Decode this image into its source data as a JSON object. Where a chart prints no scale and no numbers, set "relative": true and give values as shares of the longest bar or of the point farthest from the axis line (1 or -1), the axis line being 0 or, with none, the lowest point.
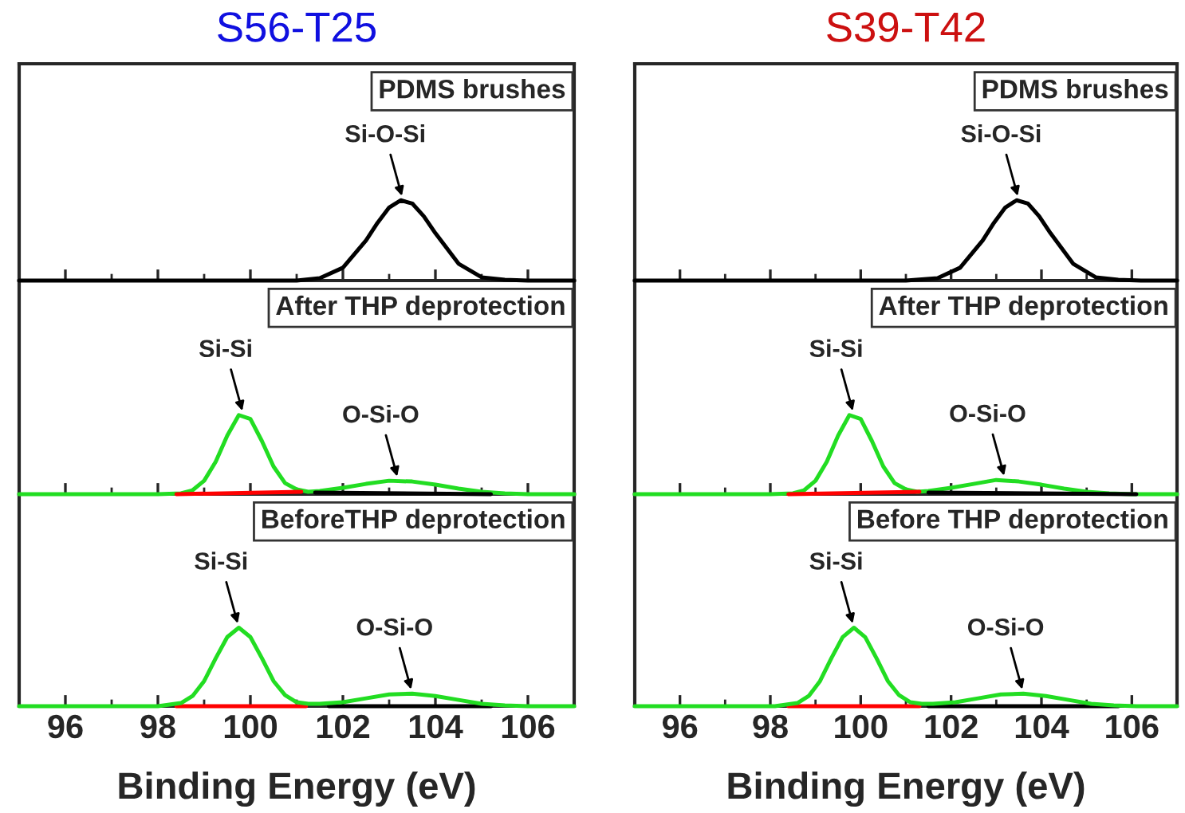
{
  "chart_data": [
    {
      "type": "line",
      "title": "S56-T25",
      "relative": true,
      "xlim": [
        95,
        107
      ],
      "xticks": [
        96,
        98,
        100,
        102,
        104,
        106
      ],
      "tick_labels": false,
      "annotations": [
        "PDMS brushes",
        {
          "text": "Si-O-Si",
          "x": 103.3,
          "y": 1
        }
      ],
      "series": [
        {
          "color": "#000000",
          "x": [
            95,
            97,
            99,
            100,
            101,
            101.5,
            102,
            102.5,
            102.75,
            103,
            103.25,
            103.5,
            103.75,
            104,
            104.5,
            105,
            105.5,
            106,
            107
          ],
          "values": [
            0,
            0,
            0,
            0,
            0,
            0.03,
            0.16,
            0.5,
            0.72,
            0.91,
            1,
            0.96,
            0.8,
            0.59,
            0.21,
            0.04,
            0.01,
            0,
            0
          ]
        }
      ]
    },
    {
      "type": "line",
      "title": "S39-T42",
      "relative": true,
      "xlim": [
        95,
        107
      ],
      "xticks": [
        96,
        98,
        100,
        102,
        104,
        106
      ],
      "tick_labels": false,
      "annotations": [
        "PDMS brushes",
        {
          "text": "Si-O-Si",
          "x": 103.5,
          "y": 1
        }
      ],
      "series": [
        {
          "color": "#000000",
          "x": [
            95,
            97,
            99,
            100,
            101,
            101.7,
            102.2,
            102.7,
            102.95,
            103.2,
            103.45,
            103.7,
            103.95,
            104.2,
            104.7,
            105.2,
            105.7,
            106.2,
            107
          ],
          "values": [
            0,
            0,
            0,
            0,
            0,
            0.03,
            0.16,
            0.5,
            0.72,
            0.91,
            1,
            0.96,
            0.8,
            0.59,
            0.21,
            0.04,
            0.01,
            0,
            0
          ]
        }
      ]
    },
    {
      "type": "line",
      "relative": true,
      "xlim": [
        95,
        107
      ],
      "xticks": [
        96,
        98,
        100,
        102,
        104,
        106
      ],
      "tick_labels": false,
      "annotations": [
        "After THP deprotection",
        {
          "text": "Si-Si",
          "x": 99.85,
          "y": 1
        },
        {
          "text": "O-Si-O",
          "x": 103.2,
          "y": 0.17
        }
      ],
      "series": [
        {
          "color": "#22dd22",
          "x": [
            95,
            97,
            98,
            98.5,
            98.75,
            99,
            99.25,
            99.5,
            99.75,
            100,
            100.25,
            100.5,
            100.75,
            101,
            101.25,
            101.5,
            102,
            102.5,
            103,
            103.5,
            104,
            104.5,
            105,
            105.5,
            106,
            107
          ],
          "values": [
            0,
            0,
            0,
            0.01,
            0.05,
            0.17,
            0.41,
            0.74,
            1,
            0.95,
            0.67,
            0.35,
            0.14,
            0.06,
            0.03,
            0.04,
            0.08,
            0.13,
            0.17,
            0.16,
            0.12,
            0.07,
            0.03,
            0.01,
            0,
            0
          ]
        },
        {
          "color": "#ff0000",
          "x": [
            98.4,
            101.1
          ],
          "values": [
            0,
            0.03
          ]
        },
        {
          "color": "#000000",
          "x": [
            101.4,
            105.2
          ],
          "values": [
            0.02,
            0
          ]
        }
      ]
    },
    {
      "type": "line",
      "relative": true,
      "xlim": [
        95,
        107
      ],
      "xticks": [
        96,
        98,
        100,
        102,
        104,
        106
      ],
      "tick_labels": false,
      "annotations": [
        "After THP deprotection",
        {
          "text": "Si-Si",
          "x": 99.85,
          "y": 1
        },
        {
          "text": "O-Si-O",
          "x": 103.2,
          "y": 0.18
        }
      ],
      "series": [
        {
          "color": "#22dd22",
          "x": [
            95,
            97,
            98,
            98.5,
            98.75,
            99,
            99.25,
            99.5,
            99.75,
            100,
            100.25,
            100.5,
            100.75,
            101,
            101.25,
            101.5,
            102,
            102.5,
            103,
            103.5,
            104,
            104.5,
            105,
            105.5,
            106,
            107
          ],
          "values": [
            0,
            0,
            0,
            0.01,
            0.05,
            0.17,
            0.41,
            0.74,
            1,
            0.95,
            0.67,
            0.35,
            0.14,
            0.06,
            0.03,
            0.04,
            0.08,
            0.13,
            0.18,
            0.16,
            0.12,
            0.07,
            0.03,
            0.01,
            0,
            0
          ]
        },
        {
          "color": "#ff0000",
          "x": [
            98.4,
            101.3
          ],
          "values": [
            0,
            0.03
          ]
        },
        {
          "color": "#000000",
          "x": [
            101.5,
            106.1
          ],
          "values": [
            0.02,
            0
          ]
        }
      ]
    },
    {
      "type": "line",
      "relative": true,
      "xlim": [
        95,
        107
      ],
      "xticks": [
        96,
        98,
        100,
        102,
        104,
        106
      ],
      "tick_labels": "x",
      "xlabel": "Binding Energy (eV)",
      "annotations": [
        "BeforeTHP deprotection",
        {
          "text": "Si-Si",
          "x": 99.75,
          "y": 1
        },
        {
          "text": "O-Si-O",
          "x": 103.5,
          "y": 0.16
        }
      ],
      "series": [
        {
          "color": "#ff0000",
          "x": [
            98.4,
            101.2
          ],
          "values": [
            0,
            0
          ]
        },
        {
          "color": "#000000",
          "x": [
            101.7,
            105.2
          ],
          "values": [
            0,
            0
          ]
        },
        {
          "color": "#22dd22",
          "x": [
            95,
            97,
            98,
            98.5,
            98.75,
            99,
            99.25,
            99.5,
            99.75,
            100,
            100.25,
            100.5,
            100.75,
            101,
            101.25,
            101.5,
            102,
            102.5,
            103,
            103.5,
            104,
            104.5,
            105,
            105.5,
            106,
            107
          ],
          "values": [
            0,
            0,
            0,
            0.04,
            0.13,
            0.32,
            0.61,
            0.88,
            1,
            0.88,
            0.61,
            0.32,
            0.14,
            0.05,
            0.03,
            0.03,
            0.05,
            0.1,
            0.15,
            0.16,
            0.13,
            0.08,
            0.03,
            0.01,
            0,
            0
          ]
        }
      ]
    },
    {
      "type": "line",
      "relative": true,
      "xlim": [
        95,
        107
      ],
      "xticks": [
        96,
        98,
        100,
        102,
        104,
        106
      ],
      "tick_labels": "x",
      "xlabel": "Binding Energy (eV)",
      "annotations": [
        "Before THP deprotection",
        {
          "text": "Si-Si",
          "x": 99.85,
          "y": 1
        },
        {
          "text": "O-Si-O",
          "x": 103.6,
          "y": 0.16
        }
      ],
      "series": [
        {
          "color": "#ff0000",
          "x": [
            98.4,
            101.3
          ],
          "values": [
            0,
            0
          ]
        },
        {
          "color": "#000000",
          "x": [
            101.5,
            105.7
          ],
          "values": [
            0,
            0
          ]
        },
        {
          "color": "#22dd22",
          "x": [
            95,
            97,
            98.1,
            98.6,
            98.85,
            99.1,
            99.35,
            99.6,
            99.85,
            100.1,
            100.35,
            100.6,
            100.85,
            101.1,
            101.35,
            101.6,
            102.1,
            102.6,
            103.1,
            103.6,
            104.1,
            104.6,
            105.1,
            105.6,
            106.1,
            107
          ],
          "values": [
            0,
            0,
            0,
            0.04,
            0.13,
            0.32,
            0.61,
            0.88,
            1,
            0.88,
            0.61,
            0.32,
            0.14,
            0.05,
            0.03,
            0.03,
            0.05,
            0.1,
            0.15,
            0.16,
            0.13,
            0.08,
            0.03,
            0.01,
            0,
            0
          ]
        }
      ]
    }
  ]
}
